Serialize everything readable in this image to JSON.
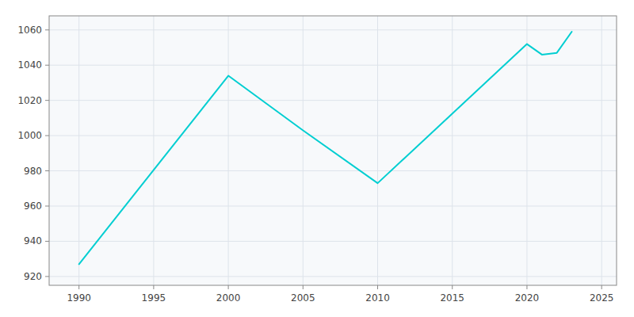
{
  "chart_data": {
    "type": "line",
    "x": [
      1990,
      2000,
      2005,
      2010,
      2020,
      2021,
      2022,
      2023
    ],
    "values": [
      927,
      1034,
      1003,
      973,
      1052,
      1046,
      1047,
      1059
    ],
    "color": "#00CED1",
    "xlim": [
      1988,
      2026
    ],
    "ylim": [
      915,
      1068
    ],
    "xticks": [
      1990,
      1995,
      2000,
      2005,
      2010,
      2015,
      2020,
      2025
    ],
    "yticks": [
      920,
      940,
      960,
      980,
      1000,
      1020,
      1040,
      1060
    ],
    "grid": true
  }
}
